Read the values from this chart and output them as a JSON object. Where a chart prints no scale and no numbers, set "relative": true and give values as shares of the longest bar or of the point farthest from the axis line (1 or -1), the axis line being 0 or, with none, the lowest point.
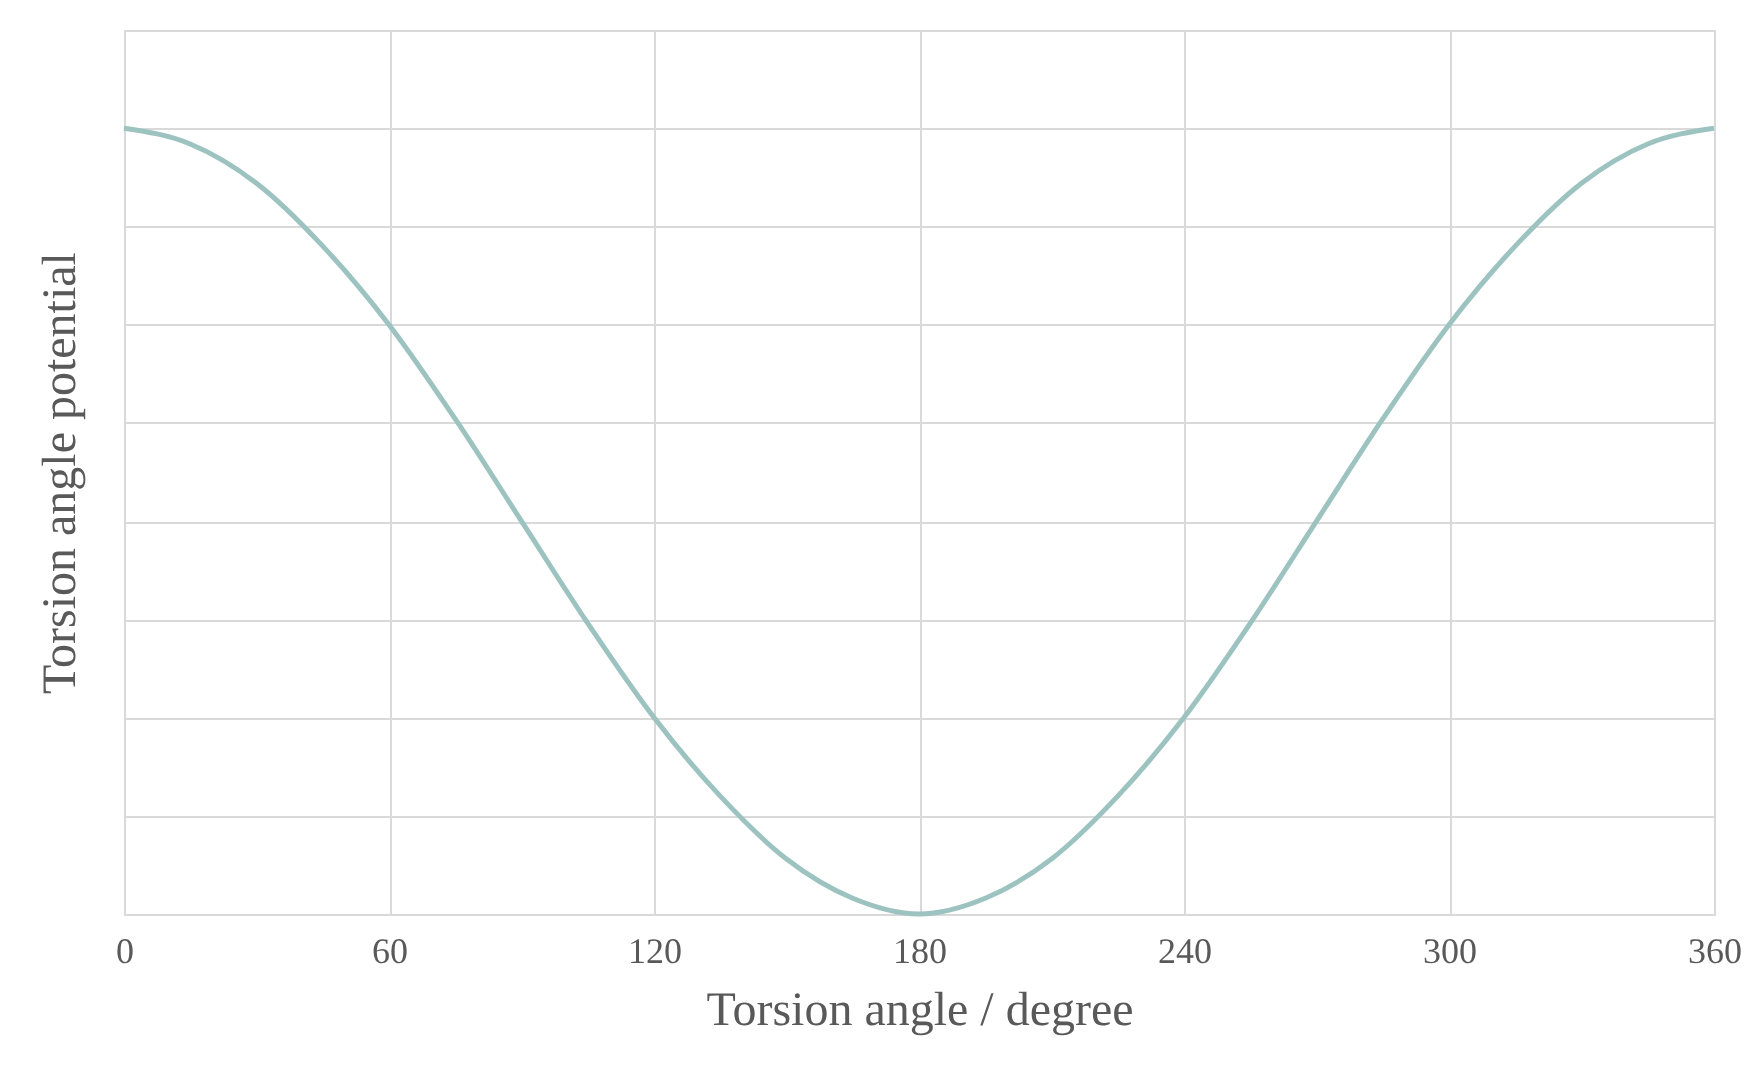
{
  "chart_data": {
    "type": "line",
    "relative": true,
    "xlabel": "Torsion angle / degree",
    "ylabel": "Torsion angle potential",
    "x": [
      0,
      15,
      30,
      45,
      60,
      75,
      90,
      105,
      120,
      135,
      150,
      165,
      180,
      195,
      210,
      225,
      240,
      255,
      270,
      285,
      300,
      315,
      330,
      345,
      360
    ],
    "series": [
      {
        "color": "#9dc3c1",
        "values": [
          1,
          0.98,
          0.93,
          0.85,
          0.75,
          0.63,
          0.5,
          0.37,
          0.25,
          0.15,
          0.07,
          0.02,
          0,
          0.02,
          0.07,
          0.15,
          0.25,
          0.37,
          0.5,
          0.63,
          0.75,
          0.85,
          0.93,
          0.98,
          1
        ]
      }
    ],
    "xlim": [
      0,
      360
    ],
    "xticks": [
      0,
      60,
      120,
      180,
      240,
      300,
      360
    ],
    "grid": true,
    "marker": "none",
    "line_style": "solid"
  }
}
